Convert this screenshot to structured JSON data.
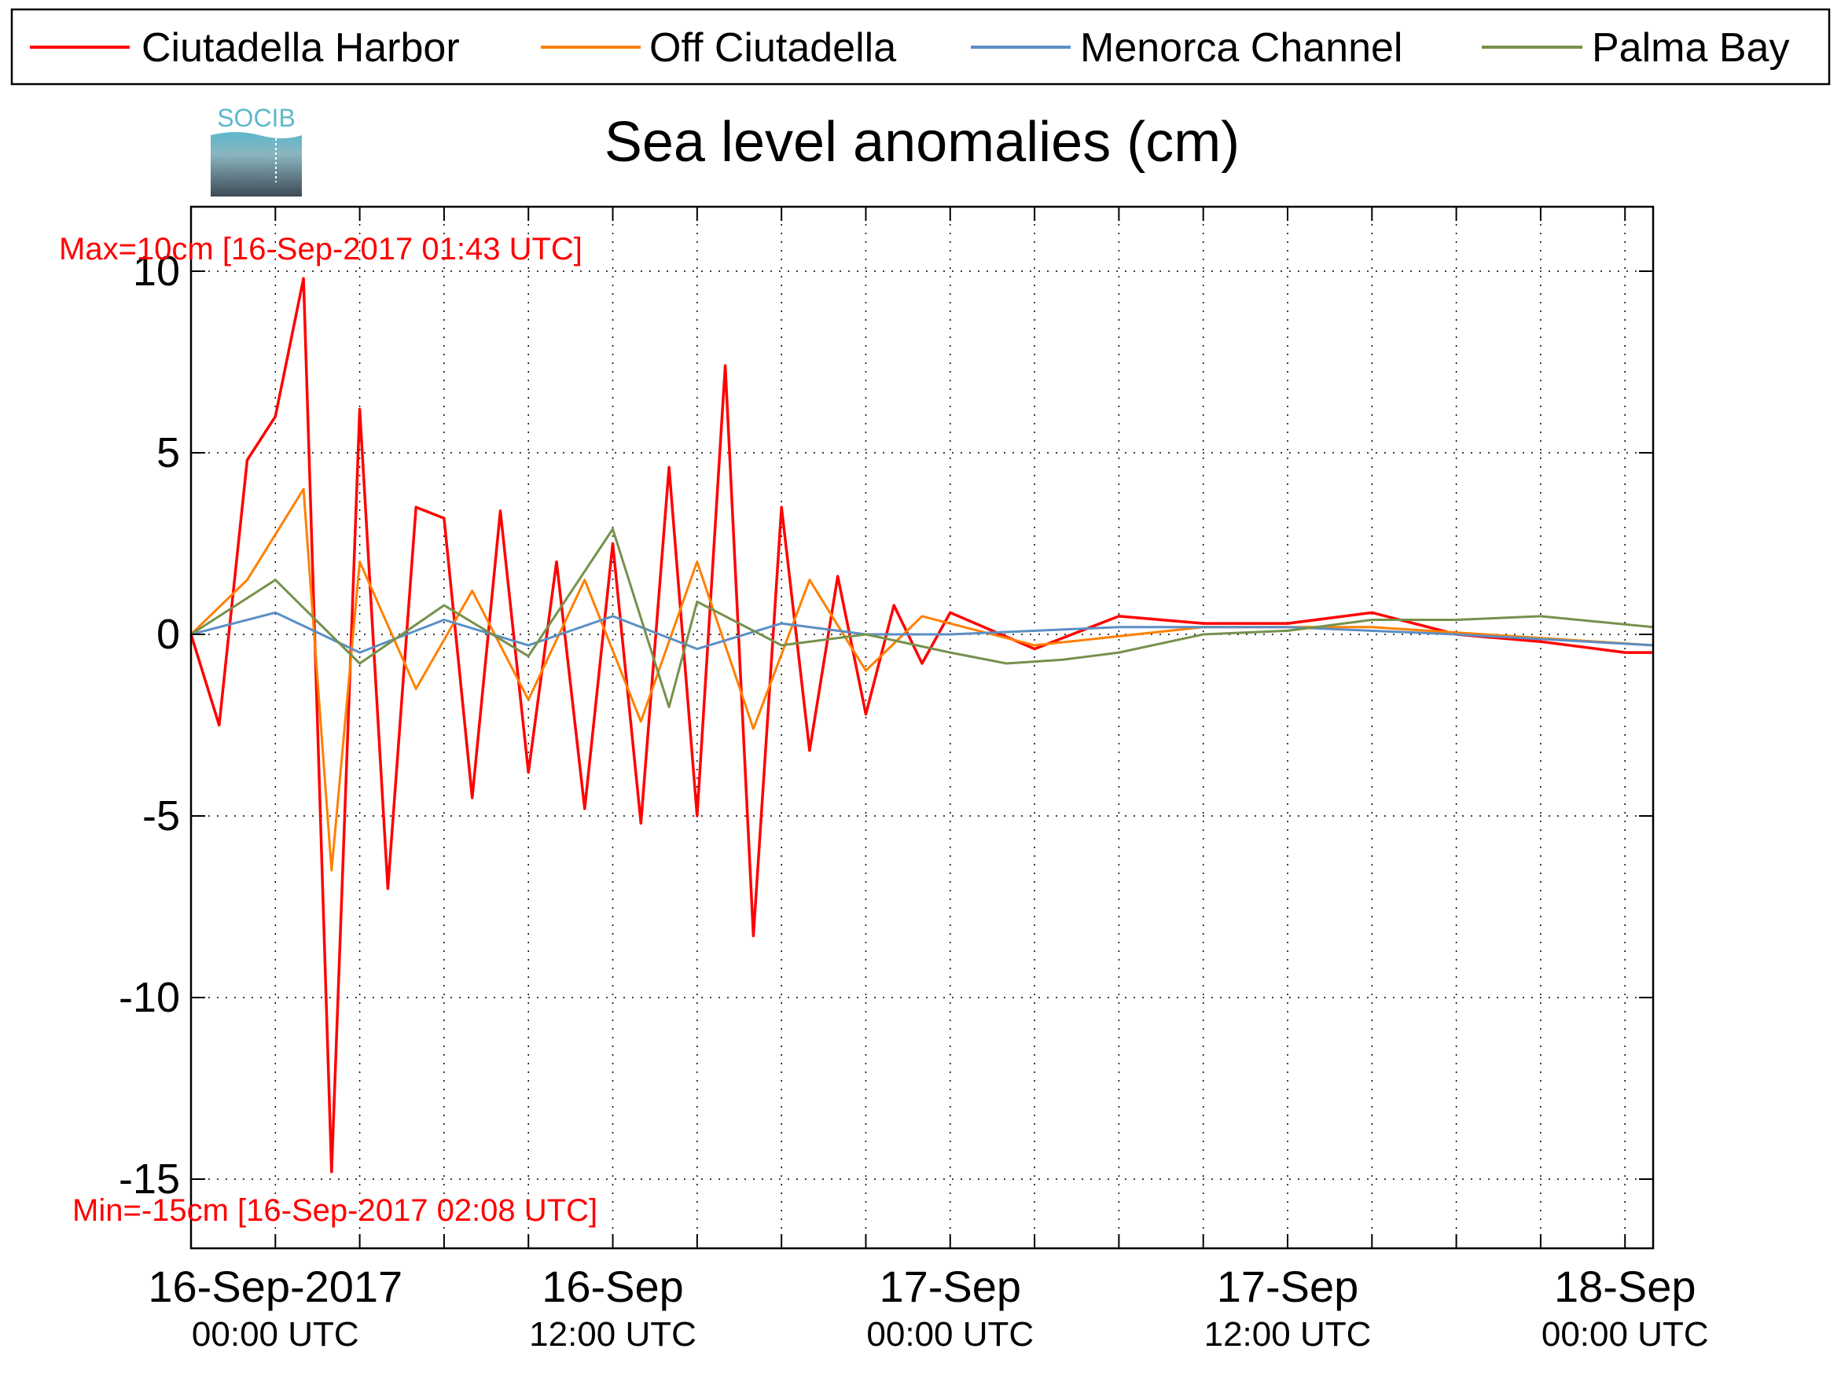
{
  "chart_data": {
    "type": "line",
    "title": "Sea level anomalies (cm)",
    "xlabel": "",
    "ylabel": "",
    "ylim": [
      -15,
      10
    ],
    "yticks": [
      10,
      5,
      0,
      -5,
      -10,
      -15
    ],
    "xlim": [
      "2017-09-15T21:00",
      "2017-09-18T01:00"
    ],
    "grid": true,
    "legend_position": "top",
    "x_major_ticks": [
      {
        "date": "2017-09-16T00:00",
        "label1": "16-Sep-2017",
        "label2": "00:00 UTC"
      },
      {
        "date": "2017-09-16T12:00",
        "label1": "16-Sep",
        "label2": "12:00 UTC"
      },
      {
        "date": "2017-09-17T00:00",
        "label1": "17-Sep",
        "label2": "00:00 UTC"
      },
      {
        "date": "2017-09-17T12:00",
        "label1": "17-Sep",
        "label2": "12:00 UTC"
      },
      {
        "date": "2017-09-18T00:00",
        "label1": "18-Sep",
        "label2": "00:00 UTC"
      }
    ],
    "annotations": {
      "max": "Max=10cm [16-Sep-2017 01:43 UTC]",
      "min": "Min=-15cm [16-Sep-2017 02:08 UTC]"
    },
    "logo_text": "SOCIB",
    "series": [
      {
        "name": "Ciutadella Harbor",
        "color": "#ff0000",
        "width": 3.5,
        "x": [
          "2017-09-15T21:00",
          "2017-09-15T22:00",
          "2017-09-15T23:00",
          "2017-09-16T00:00",
          "2017-09-16T01:00",
          "2017-09-16T02:00",
          "2017-09-16T03:00",
          "2017-09-16T04:00",
          "2017-09-16T05:00",
          "2017-09-16T06:00",
          "2017-09-16T07:00",
          "2017-09-16T08:00",
          "2017-09-16T09:00",
          "2017-09-16T10:00",
          "2017-09-16T11:00",
          "2017-09-16T12:00",
          "2017-09-16T13:00",
          "2017-09-16T14:00",
          "2017-09-16T15:00",
          "2017-09-16T16:00",
          "2017-09-16T17:00",
          "2017-09-16T18:00",
          "2017-09-16T19:00",
          "2017-09-16T20:00",
          "2017-09-16T21:00",
          "2017-09-16T22:00",
          "2017-09-16T23:00",
          "2017-09-17T00:00",
          "2017-09-17T03:00",
          "2017-09-17T06:00",
          "2017-09-17T09:00",
          "2017-09-17T12:00",
          "2017-09-17T15:00",
          "2017-09-17T18:00",
          "2017-09-17T21:00",
          "2017-09-18T00:00",
          "2017-09-18T01:00"
        ],
        "y": [
          0,
          -2.5,
          4.8,
          6,
          9.8,
          -14.8,
          6.2,
          -7,
          3.5,
          3.2,
          -4.5,
          3.4,
          -3.8,
          2,
          -4.8,
          2.5,
          -5.2,
          4.6,
          -5,
          7.4,
          -8.3,
          3.5,
          -3.2,
          1.6,
          -2.2,
          0.8,
          -0.8,
          0.6,
          -0.4,
          0.5,
          0.3,
          0.3,
          0.6,
          0,
          -0.2,
          -0.5,
          -0.5
        ]
      },
      {
        "name": "Off Ciutadella",
        "color": "#ff8000",
        "width": 3,
        "x": [
          "2017-09-15T21:00",
          "2017-09-15T23:00",
          "2017-09-16T01:00",
          "2017-09-16T02:00",
          "2017-09-16T03:00",
          "2017-09-16T05:00",
          "2017-09-16T07:00",
          "2017-09-16T09:00",
          "2017-09-16T11:00",
          "2017-09-16T13:00",
          "2017-09-16T15:00",
          "2017-09-16T17:00",
          "2017-09-16T19:00",
          "2017-09-16T21:00",
          "2017-09-16T23:00",
          "2017-09-17T03:00",
          "2017-09-17T09:00",
          "2017-09-17T15:00",
          "2017-09-17T21:00",
          "2017-09-18T01:00"
        ],
        "y": [
          0,
          1.5,
          4,
          -6.5,
          2,
          -1.5,
          1.2,
          -1.8,
          1.5,
          -2.4,
          2,
          -2.6,
          1.5,
          -1,
          0.5,
          -0.3,
          0.2,
          0.2,
          -0.1,
          -0.3
        ]
      },
      {
        "name": "Menorca Channel",
        "color": "#5b8fc5",
        "width": 3,
        "x": [
          "2017-09-15T21:00",
          "2017-09-16T00:00",
          "2017-09-16T03:00",
          "2017-09-16T06:00",
          "2017-09-16T09:00",
          "2017-09-16T12:00",
          "2017-09-16T15:00",
          "2017-09-16T18:00",
          "2017-09-16T21:00",
          "2017-09-17T00:00",
          "2017-09-17T06:00",
          "2017-09-17T12:00",
          "2017-09-17T18:00",
          "2017-09-18T01:00"
        ],
        "y": [
          0,
          0.6,
          -0.5,
          0.4,
          -0.3,
          0.5,
          -0.4,
          0.3,
          0,
          0,
          0.2,
          0.2,
          0,
          -0.3
        ]
      },
      {
        "name": "Palma Bay",
        "color": "#76914c",
        "width": 3,
        "x": [
          "2017-09-15T21:00",
          "2017-09-16T00:00",
          "2017-09-16T03:00",
          "2017-09-16T06:00",
          "2017-09-16T09:00",
          "2017-09-16T12:00",
          "2017-09-16T14:00",
          "2017-09-16T15:00",
          "2017-09-16T18:00",
          "2017-09-16T21:00",
          "2017-09-17T00:00",
          "2017-09-17T02:00",
          "2017-09-17T04:00",
          "2017-09-17T06:00",
          "2017-09-17T09:00",
          "2017-09-17T12:00",
          "2017-09-17T15:00",
          "2017-09-17T18:00",
          "2017-09-17T21:00",
          "2017-09-18T01:00"
        ],
        "y": [
          0,
          1.5,
          -0.8,
          0.8,
          -0.6,
          2.9,
          -2,
          0.9,
          -0.3,
          0,
          -0.5,
          -0.8,
          -0.7,
          -0.5,
          0,
          0.1,
          0.4,
          0.4,
          0.5,
          0.2
        ]
      }
    ]
  }
}
